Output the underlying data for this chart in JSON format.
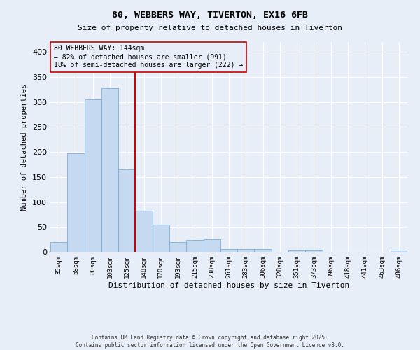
{
  "title": "80, WEBBERS WAY, TIVERTON, EX16 6FB",
  "subtitle": "Size of property relative to detached houses in Tiverton",
  "xlabel": "Distribution of detached houses by size in Tiverton",
  "ylabel": "Number of detached properties",
  "bin_labels": [
    "35sqm",
    "58sqm",
    "80sqm",
    "103sqm",
    "125sqm",
    "148sqm",
    "170sqm",
    "193sqm",
    "215sqm",
    "238sqm",
    "261sqm",
    "283sqm",
    "306sqm",
    "328sqm",
    "351sqm",
    "373sqm",
    "396sqm",
    "418sqm",
    "441sqm",
    "463sqm",
    "486sqm"
  ],
  "bar_heights": [
    20,
    198,
    305,
    328,
    165,
    83,
    55,
    20,
    24,
    25,
    6,
    5,
    6,
    0,
    4,
    4,
    0,
    0,
    0,
    0,
    3
  ],
  "bar_color": "#c5d9f1",
  "bar_edgecolor": "#7bafd4",
  "vline_index": 5,
  "vline_color": "#cc0000",
  "property_label": "80 WEBBERS WAY: 144sqm",
  "annotation_line1": "← 82% of detached houses are smaller (991)",
  "annotation_line2": "18% of semi-detached houses are larger (222) →",
  "annotation_box_edgecolor": "#cc0000",
  "background_color": "#e8eef8",
  "grid_color": "#ffffff",
  "ylim": [
    0,
    420
  ],
  "yticks": [
    0,
    50,
    100,
    150,
    200,
    250,
    300,
    350,
    400
  ],
  "footer1": "Contains HM Land Registry data © Crown copyright and database right 2025.",
  "footer2": "Contains public sector information licensed under the Open Government Licence v3.0."
}
